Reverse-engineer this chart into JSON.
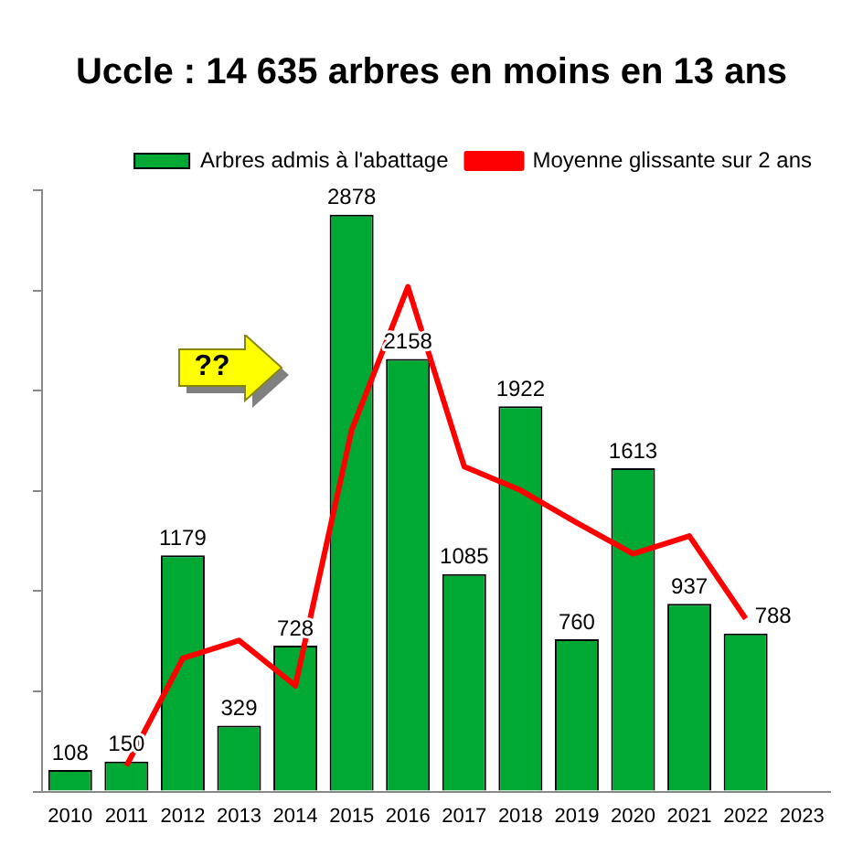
{
  "chart_data": {
    "type": "bar",
    "title": "Uccle : 14 635 arbres en moins en 13 ans",
    "categories": [
      "2010",
      "2011",
      "2012",
      "2013",
      "2014",
      "2015",
      "2016",
      "2017",
      "2018",
      "2019",
      "2020",
      "2021",
      "2022",
      "2023"
    ],
    "series": [
      {
        "name": "Arbres admis à l'abattage",
        "color": "#00a933",
        "values": [
          108,
          150,
          1179,
          329,
          728,
          2878,
          2158,
          1085,
          1922,
          760,
          1613,
          937,
          788,
          null
        ],
        "value_labels": [
          "108",
          "150",
          "1179",
          "329",
          "728",
          "2878",
          "2158",
          "1085",
          "1922",
          "760",
          "1613",
          "937",
          "788",
          null
        ]
      },
      {
        "name": "Moyenne glissante sur 2 ans",
        "type": "line",
        "color": "#ff0000",
        "values": [
          null,
          129,
          664.5,
          754,
          528.5,
          1803,
          2518,
          1621.5,
          1503.5,
          1341,
          1186.5,
          1275,
          862.5,
          null
        ]
      }
    ],
    "annotations": [
      "??"
    ],
    "legend": "top right",
    "tick_labels": "x",
    "grid": false,
    "marker": "none",
    "line_style": "solid"
  }
}
